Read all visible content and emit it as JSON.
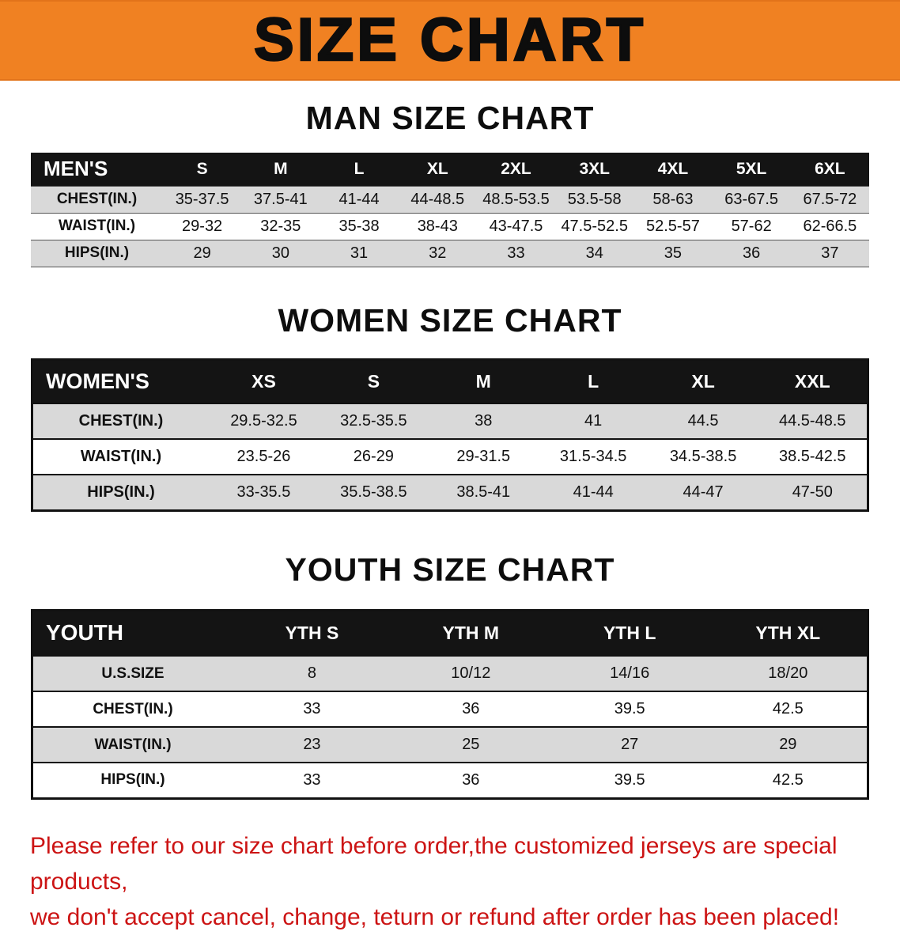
{
  "banner": {
    "title": "SIZE CHART"
  },
  "colors": {
    "banner_orange": "#f08122",
    "table_header_black": "#141414",
    "row_gray": "#d9d9d9",
    "disclaimer_red": "#cc1414"
  },
  "men": {
    "heading": "MAN SIZE CHART",
    "table": {
      "header": [
        "MEN'S",
        "S",
        "M",
        "L",
        "XL",
        "2XL",
        "3XL",
        "4XL",
        "5XL",
        "6XL"
      ],
      "rows": [
        [
          "CHEST(IN.)",
          "35-37.5",
          "37.5-41",
          "41-44",
          "44-48.5",
          "48.5-53.5",
          "53.5-58",
          "58-63",
          "63-67.5",
          "67.5-72"
        ],
        [
          "WAIST(IN.)",
          "29-32",
          "32-35",
          "35-38",
          "38-43",
          "43-47.5",
          "47.5-52.5",
          "52.5-57",
          "57-62",
          "62-66.5"
        ],
        [
          "HIPS(IN.)",
          "29",
          "30",
          "31",
          "32",
          "33",
          "34",
          "35",
          "36",
          "37"
        ]
      ]
    }
  },
  "women": {
    "heading": "WOMEN SIZE CHART",
    "table": {
      "header": [
        "WOMEN'S",
        "XS",
        "S",
        "M",
        "L",
        "XL",
        "XXL"
      ],
      "rows": [
        [
          "CHEST(IN.)",
          "29.5-32.5",
          "32.5-35.5",
          "38",
          "41",
          "44.5",
          "44.5-48.5"
        ],
        [
          "WAIST(IN.)",
          "23.5-26",
          "26-29",
          "29-31.5",
          "31.5-34.5",
          "34.5-38.5",
          "38.5-42.5"
        ],
        [
          "HIPS(IN.)",
          "33-35.5",
          "35.5-38.5",
          "38.5-41",
          "41-44",
          "44-47",
          "47-50"
        ]
      ]
    }
  },
  "youth": {
    "heading": "YOUTH SIZE CHART",
    "table": {
      "header": [
        "YOUTH",
        "YTH S",
        "YTH M",
        "YTH L",
        "YTH XL"
      ],
      "rows": [
        [
          "U.S.SIZE",
          "8",
          "10/12",
          "14/16",
          "18/20"
        ],
        [
          "CHEST(IN.)",
          "33",
          "36",
          "39.5",
          "42.5"
        ],
        [
          "WAIST(IN.)",
          "23",
          "25",
          "27",
          "29"
        ],
        [
          "HIPS(IN.)",
          "33",
          "36",
          "39.5",
          "42.5"
        ]
      ]
    }
  },
  "disclaimer": {
    "line1": "Please refer to our size chart before order,the customized jerseys are special products,",
    "line2": "we don't accept cancel, change, teturn or refund after order has been placed!"
  }
}
